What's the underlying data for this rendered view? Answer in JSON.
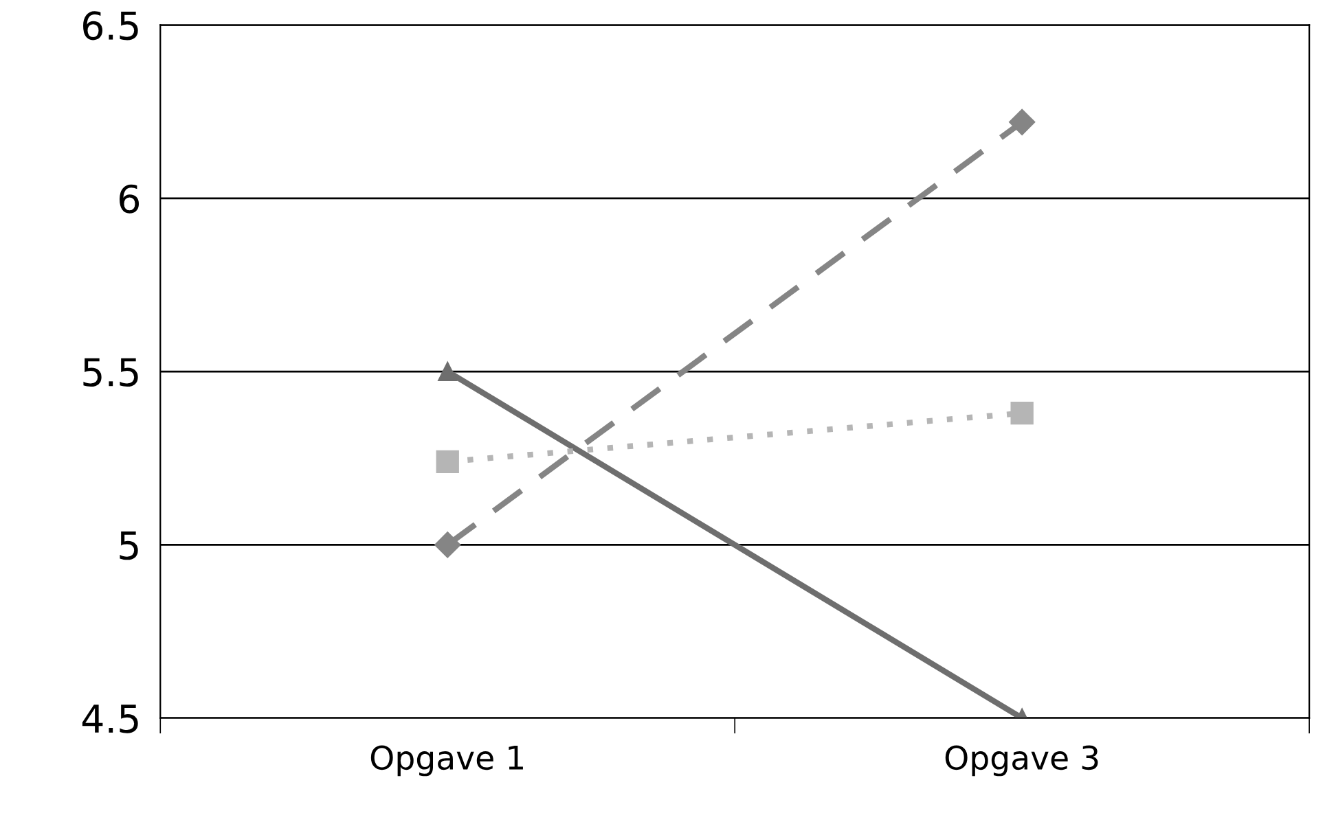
{
  "chart_data": {
    "type": "line",
    "categories": [
      "Opgave 1",
      "Opgave 3"
    ],
    "series": [
      {
        "color": "#6e6e6e",
        "values": [
          5.5,
          4.5
        ],
        "marker": "triangle",
        "line_style": "solid"
      },
      {
        "color": "#858585",
        "values": [
          5.0,
          6.22
        ],
        "marker": "diamond",
        "line_style": "dashed"
      },
      {
        "color": "#b5b5b5",
        "values": [
          5.24,
          5.38
        ],
        "marker": "square",
        "line_style": "dotted"
      }
    ],
    "ylim": [
      4.5,
      6.5
    ],
    "yticks": [
      4.5,
      5,
      5.5,
      6,
      6.5
    ],
    "grid": "y"
  }
}
